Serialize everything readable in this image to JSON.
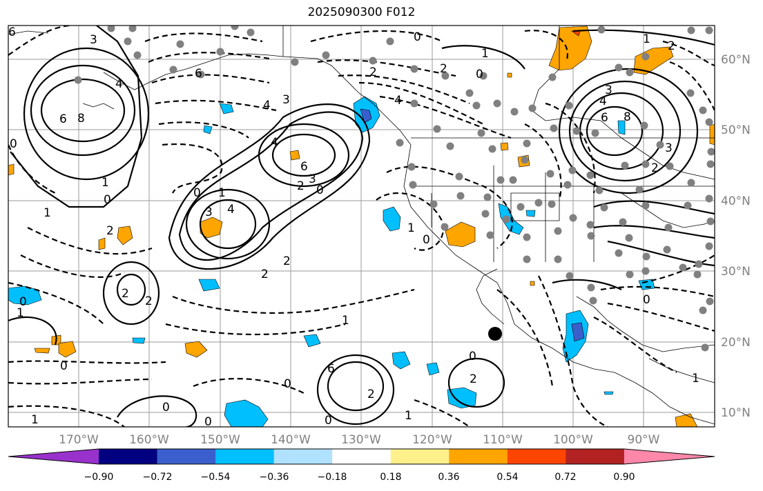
{
  "title": "2025090300 F012",
  "lon_labels": [
    "170°W",
    "160°W",
    "150°W",
    "140°W",
    "130°W",
    "120°W",
    "110°W",
    "100°W",
    "90°W"
  ],
  "lat_labels": [
    "60°N",
    "50°N",
    "40°N",
    "30°N",
    "20°N",
    "10°N"
  ],
  "colorbar": {
    "ticks": [
      "−0.90",
      "−0.72",
      "−0.54",
      "−0.36",
      "−0.18",
      "0.18",
      "0.36",
      "0.54",
      "0.72",
      "0.90"
    ],
    "colors": [
      "#9932cc",
      "#000080",
      "#3a5fcd",
      "#00bfff",
      "#b0e2ff",
      "#ffffff",
      "#fff08c",
      "#ffa500",
      "#ff4500",
      "#b22222",
      "#ff88aa"
    ]
  },
  "contour_labels": [
    {
      "t": "3"
    },
    {
      "t": "4"
    },
    {
      "t": "6"
    },
    {
      "t": "8"
    },
    {
      "t": "6"
    },
    {
      "t": "1"
    },
    {
      "t": "0"
    },
    {
      "t": "1"
    },
    {
      "t": "0"
    },
    {
      "t": "2"
    },
    {
      "t": "6"
    },
    {
      "t": "4"
    },
    {
      "t": "3"
    },
    {
      "t": "4"
    },
    {
      "t": "6"
    },
    {
      "t": "2"
    },
    {
      "t": "3"
    },
    {
      "t": "0"
    },
    {
      "t": "1"
    },
    {
      "t": "3"
    },
    {
      "t": "4"
    },
    {
      "t": "2"
    },
    {
      "t": "2"
    },
    {
      "t": "2"
    },
    {
      "t": "2"
    },
    {
      "t": "0"
    },
    {
      "t": "1"
    },
    {
      "t": "0"
    },
    {
      "t": "0"
    },
    {
      "t": "0"
    },
    {
      "t": "0"
    },
    {
      "t": "0"
    },
    {
      "t": "1"
    },
    {
      "t": "6"
    },
    {
      "t": "2"
    },
    {
      "t": "0"
    },
    {
      "t": "1"
    },
    {
      "t": "1"
    },
    {
      "t": "0"
    },
    {
      "t": "1"
    },
    {
      "t": "0"
    },
    {
      "t": "2"
    },
    {
      "t": "0"
    },
    {
      "t": "1"
    },
    {
      "t": "4"
    },
    {
      "t": "2"
    },
    {
      "t": "0"
    },
    {
      "t": "3"
    },
    {
      "t": "4"
    },
    {
      "t": "6"
    },
    {
      "t": "8"
    },
    {
      "t": "1"
    },
    {
      "t": "2"
    },
    {
      "t": "1"
    },
    {
      "t": "0"
    },
    {
      "t": "2"
    },
    {
      "t": "3"
    },
    {
      "t": "2"
    }
  ]
}
